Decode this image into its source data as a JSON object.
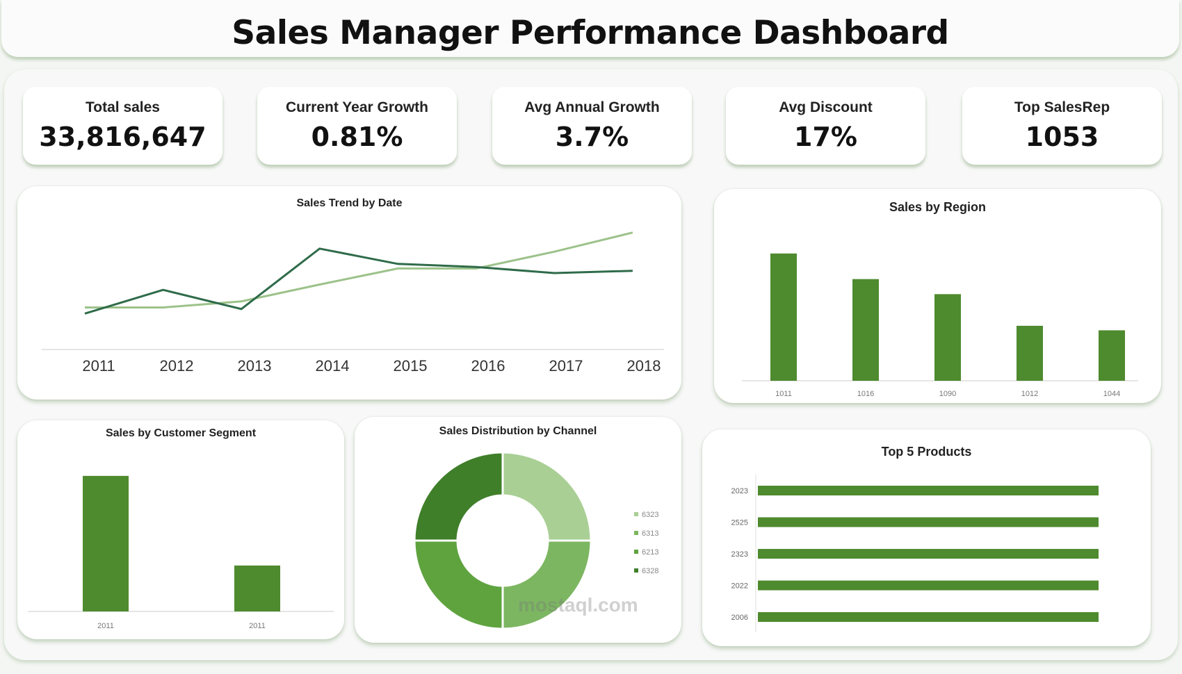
{
  "title": "Sales Manager Performance Dashboard",
  "kpis": [
    {
      "label": "Total sales",
      "value": "33,816,647"
    },
    {
      "label": "Current Year Growth",
      "value": "0.81%"
    },
    {
      "label": "Avg Annual Growth",
      "value": "3.7%"
    },
    {
      "label": "Avg Discount",
      "value": "17%"
    },
    {
      "label": "Top SalesRep",
      "value": "1053"
    }
  ],
  "colors": {
    "bar": "#4e8a2e",
    "line_dark": "#2f6b4a",
    "line_light": "#9cc28a",
    "donut": [
      "#a9cf95",
      "#7cb661",
      "#5fa33f",
      "#3f7f2a"
    ]
  },
  "watermark": "mostaql.com",
  "chart_data": [
    {
      "type": "line",
      "title": "Sales Trend by Date",
      "x": [
        "2011",
        "2012",
        "2013",
        "2014",
        "2015",
        "2016",
        "2017",
        "2018"
      ],
      "series": [
        {
          "values": [
            47,
            78,
            53,
            132,
            112,
            108,
            100,
            103
          ]
        },
        {
          "values": [
            55,
            55,
            63,
            85,
            106,
            106,
            128,
            153
          ]
        }
      ],
      "grid": false
    },
    {
      "type": "bar",
      "title": "Sales by Region",
      "categories": [
        "1011",
        "1016",
        "1090",
        "1012",
        "1044"
      ],
      "values": [
        169,
        135,
        115,
        73,
        67
      ]
    },
    {
      "type": "bar",
      "title": "Sales by Customer Segment",
      "categories": [
        "2011",
        "2011"
      ],
      "values": [
        180,
        61
      ]
    },
    {
      "type": "pie",
      "title": "Sales Distribution by Channel",
      "categories": [
        "6323",
        "6313",
        "6213",
        "6328"
      ],
      "values": [
        25,
        25,
        25,
        25
      ],
      "legend": "right"
    },
    {
      "type": "bar",
      "orientation": "horizontal",
      "title": "Top 5 Products",
      "categories": [
        "2023",
        "2525",
        "2323",
        "2022",
        "2006"
      ],
      "values": [
        100,
        100,
        100,
        100,
        100
      ]
    }
  ]
}
